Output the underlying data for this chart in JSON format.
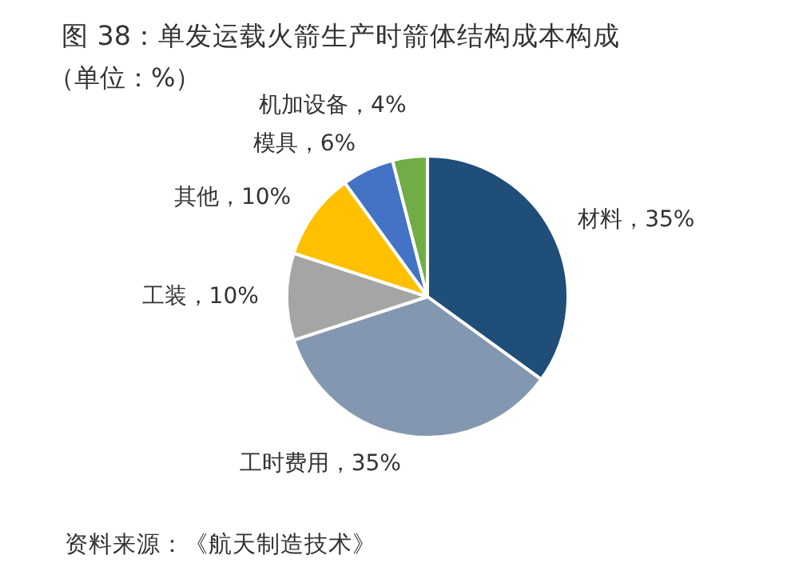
{
  "chart_data": {
    "type": "pie",
    "title": "图 38：单发运载火箭生产时箭体结构成本构成",
    "subtitle": "（单位：%）",
    "categories": [
      "材料",
      "工时费用",
      "工装",
      "其他",
      "模具",
      "机加设备"
    ],
    "values": [
      35,
      35,
      10,
      10,
      6,
      4
    ],
    "colors": [
      "#1f4e79",
      "#8497b0",
      "#a5a5a5",
      "#ffc000",
      "#4472c4",
      "#70ad47"
    ],
    "value_labels": [
      "35%",
      "35%",
      "10%",
      "10%",
      "6%",
      "4%"
    ],
    "annotations": [
      "资料来源：《航天制造技术》"
    ]
  }
}
